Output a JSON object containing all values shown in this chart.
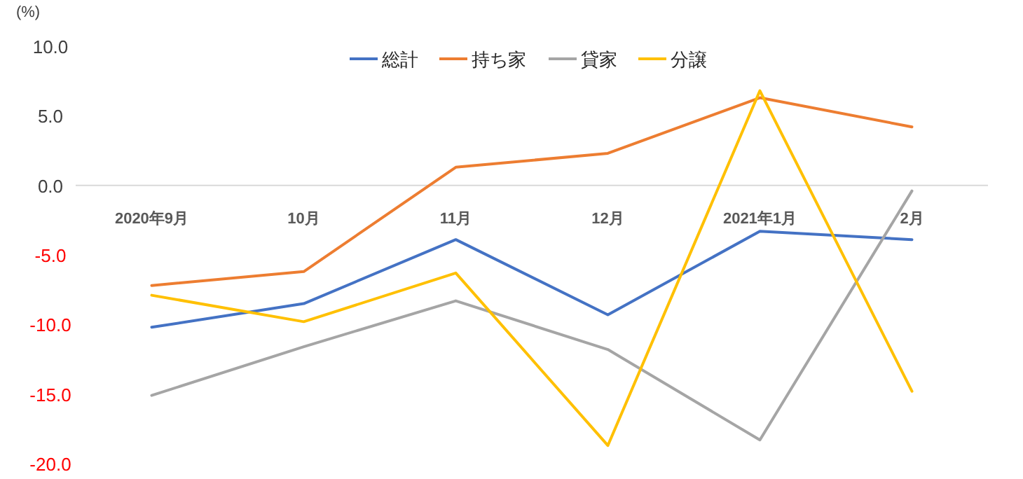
{
  "chart_data": {
    "type": "line",
    "ylabel": "(%)",
    "categories": [
      "2020年9月",
      "10月",
      "11月",
      "12月",
      "2021年1月",
      "2月"
    ],
    "series": [
      {
        "name": "総計",
        "color": "#4472c4",
        "values": [
          -10.2,
          -8.5,
          -3.9,
          -9.3,
          -3.3,
          -3.9
        ]
      },
      {
        "name": "持ち家",
        "color": "#ed7d31",
        "values": [
          -7.2,
          -6.2,
          1.3,
          2.3,
          6.3,
          4.2
        ]
      },
      {
        "name": "貸家",
        "color": "#a5a5a5",
        "values": [
          -15.1,
          -11.6,
          -8.3,
          -11.8,
          -18.3,
          -0.4
        ]
      },
      {
        "name": "分譲",
        "color": "#ffc000",
        "values": [
          -7.9,
          -9.8,
          -6.3,
          -18.7,
          6.8,
          -14.8
        ]
      }
    ],
    "ylim": [
      -20,
      10
    ],
    "yticks": [
      {
        "value": 10,
        "label": "10.0"
      },
      {
        "value": 5,
        "label": "5.0"
      },
      {
        "value": 0,
        "label": "0.0"
      },
      {
        "value": -5,
        "label": "-5.0"
      },
      {
        "value": -10,
        "label": "-10.0"
      },
      {
        "value": -15,
        "label": "-15.0"
      },
      {
        "value": -20,
        "label": "-20.0"
      }
    ],
    "legend": "top",
    "marker": "none",
    "line_style": "solid",
    "grid": false
  }
}
